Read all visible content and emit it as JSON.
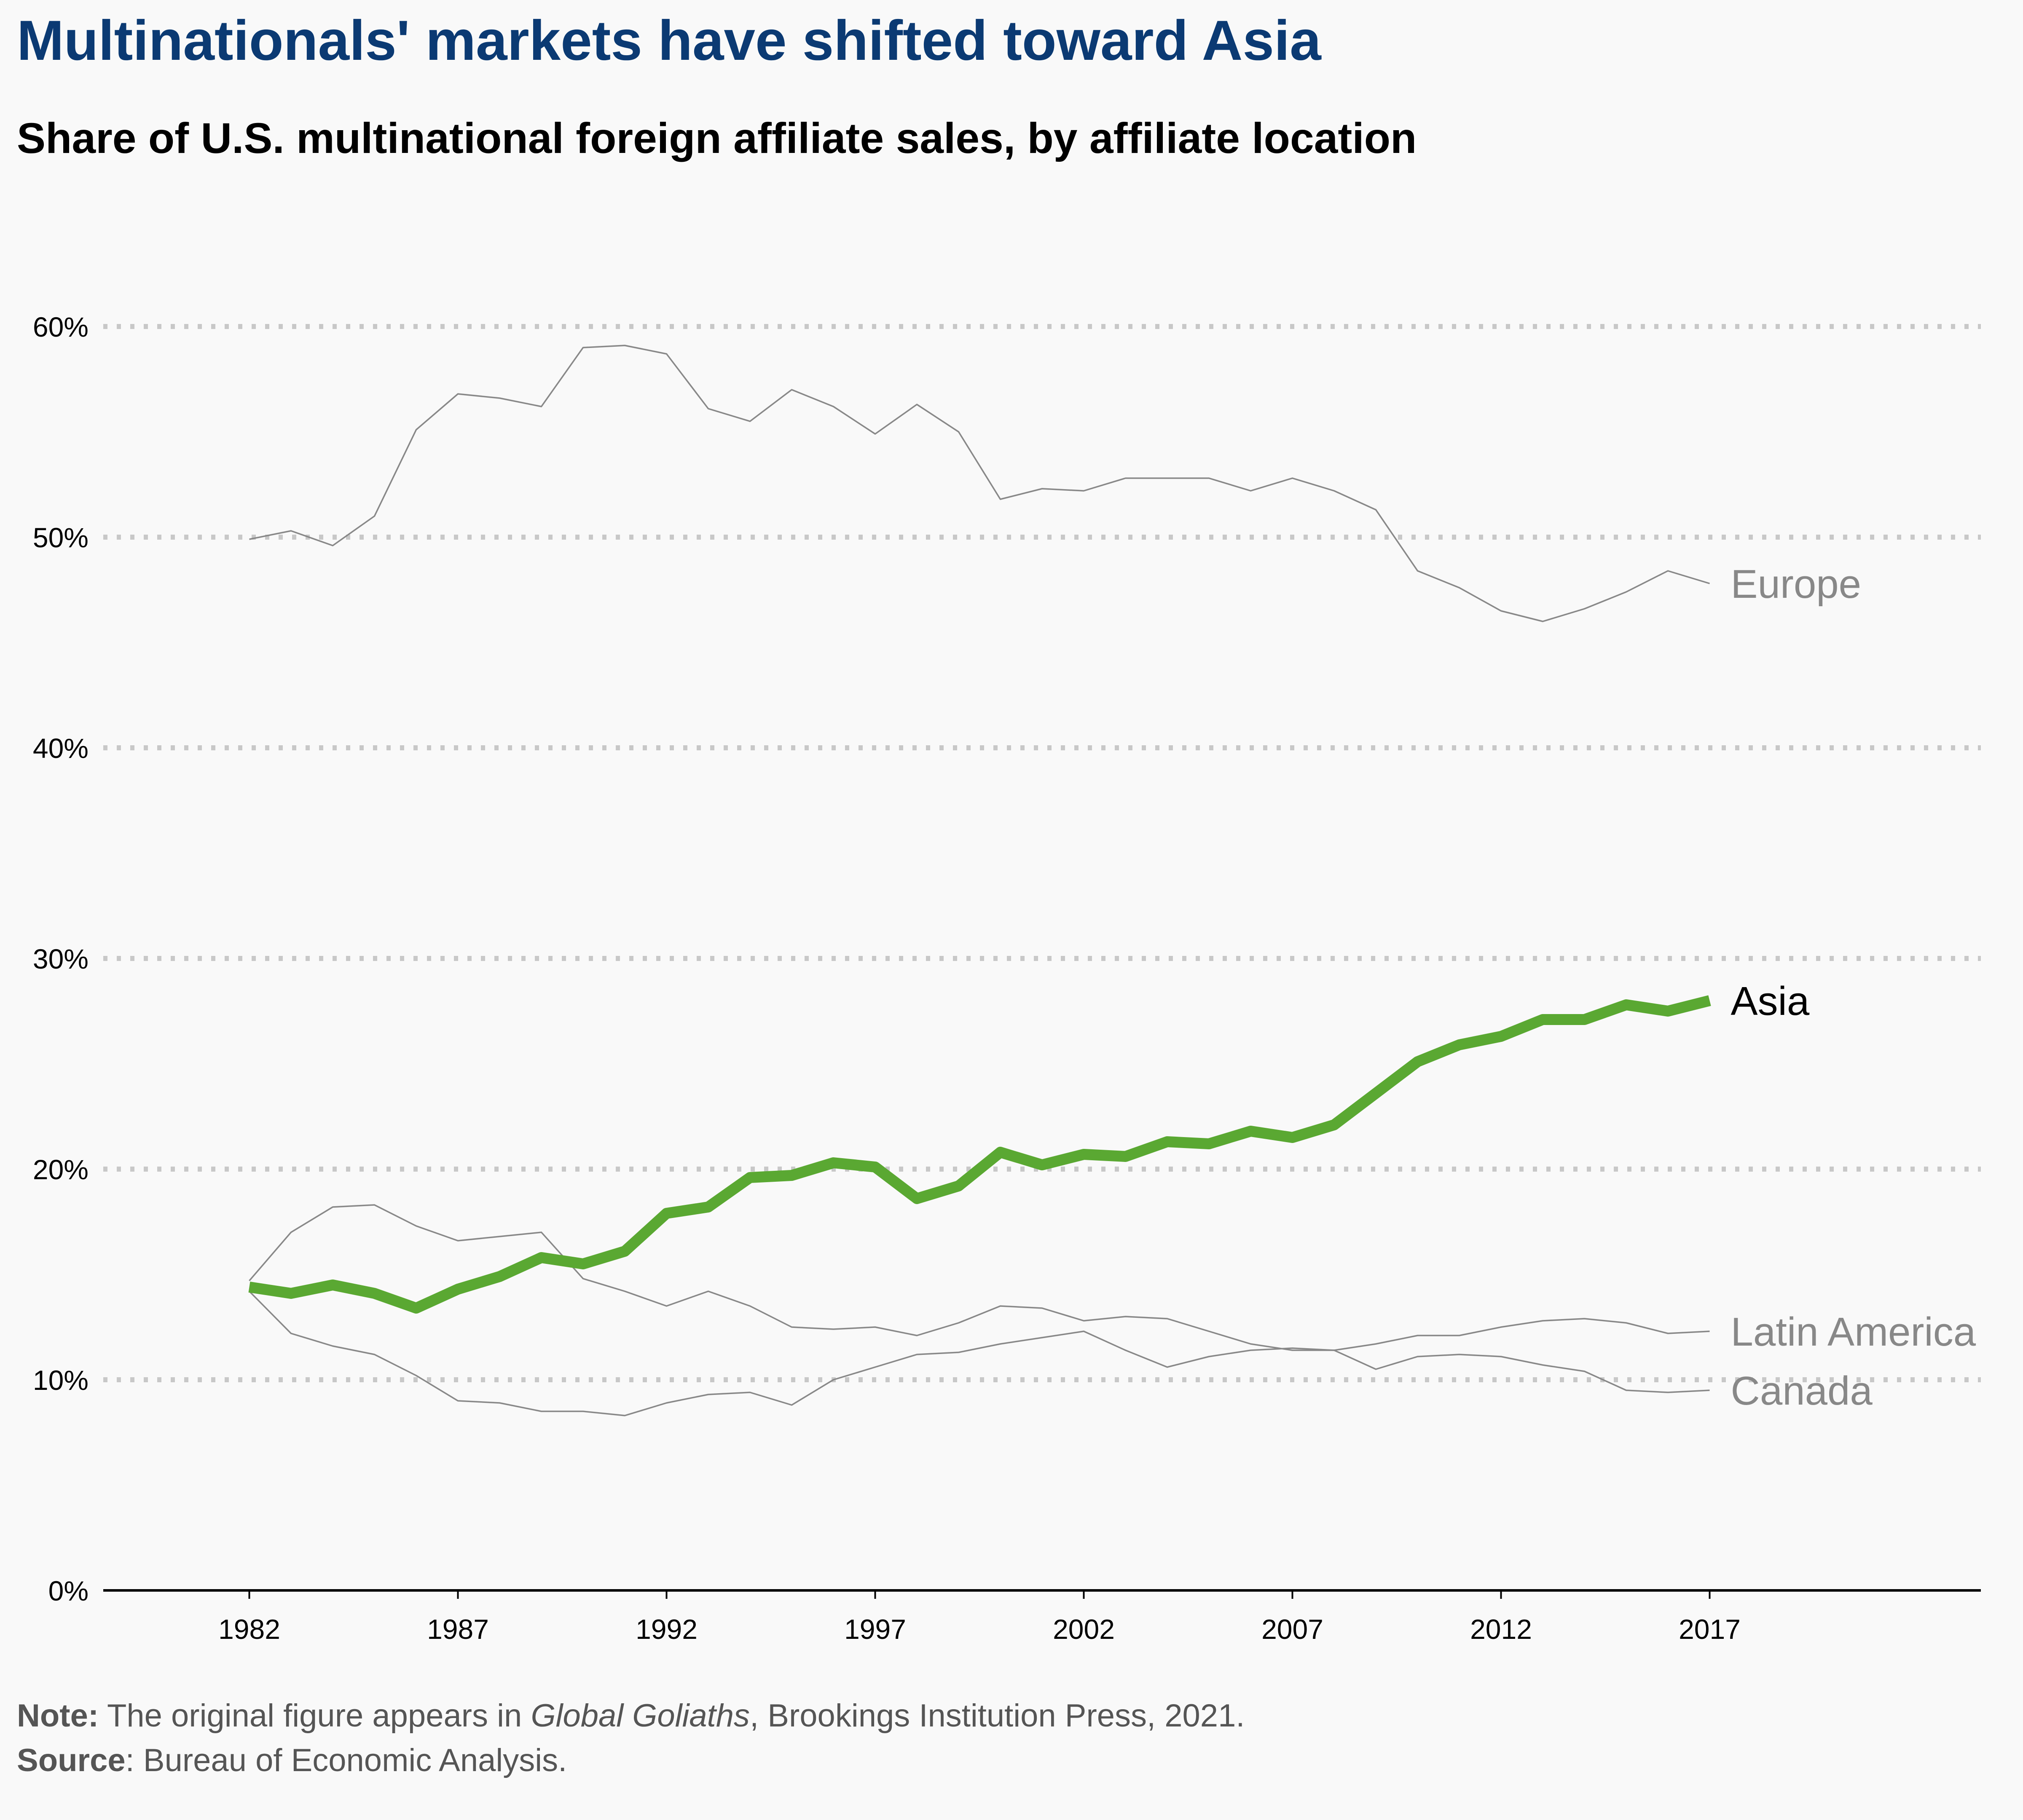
{
  "title": "Multinationals' markets have shifted toward Asia",
  "subtitle": "Share of U.S. multinational foreign affiliate sales, by affiliate location",
  "note": {
    "label": "Note:",
    "before": " The original figure appears in ",
    "book": "Global Goliaths",
    "after": ", Brookings Institution Press, 2021."
  },
  "source": {
    "label": "Source",
    "text": ": Bureau of Economic Analysis."
  },
  "chart_data": {
    "type": "line",
    "title": "Multinationals' markets have shifted toward Asia",
    "subtitle": "Share of U.S. multinational foreign affiliate sales, by affiliate location",
    "x": [
      1982,
      1983,
      1984,
      1985,
      1986,
      1987,
      1988,
      1989,
      1990,
      1991,
      1992,
      1993,
      1994,
      1995,
      1996,
      1997,
      1998,
      1999,
      2000,
      2001,
      2002,
      2003,
      2004,
      2005,
      2006,
      2007,
      2008,
      2009,
      2010,
      2011,
      2012,
      2013,
      2014,
      2015,
      2016,
      2017
    ],
    "x_ticks": [
      1982,
      1987,
      1992,
      1997,
      2002,
      2007,
      2012,
      2017
    ],
    "xlim": [
      1978.5,
      2023.5
    ],
    "ylim": [
      0,
      60
    ],
    "y_ticks": [
      0,
      10,
      20,
      30,
      40,
      50,
      60
    ],
    "y_tick_format": "percent",
    "grid": "horizontal dotted",
    "legend": "direct labels at line ends",
    "series": [
      {
        "name": "Europe",
        "color": "#888888",
        "highlight": false,
        "values": [
          49.9,
          50.3,
          49.6,
          51.0,
          55.1,
          56.8,
          56.6,
          56.2,
          59.0,
          59.1,
          58.7,
          56.1,
          55.5,
          57.0,
          56.2,
          54.9,
          56.3,
          55.0,
          51.8,
          52.3,
          52.2,
          52.8,
          52.8,
          52.8,
          52.2,
          52.8,
          52.2,
          51.3,
          48.4,
          47.6,
          46.5,
          46.0,
          46.6,
          47.4,
          48.4,
          47.8
        ]
      },
      {
        "name": "Asia",
        "color": "#5aa832",
        "highlight": true,
        "values": [
          14.4,
          14.1,
          14.5,
          14.1,
          13.4,
          14.3,
          14.9,
          15.8,
          15.5,
          16.1,
          17.9,
          18.2,
          19.6,
          19.7,
          20.3,
          20.1,
          18.6,
          19.2,
          20.8,
          20.2,
          20.7,
          20.6,
          21.3,
          21.2,
          21.8,
          21.5,
          22.1,
          23.6,
          25.1,
          25.9,
          26.3,
          27.1,
          27.1,
          27.8,
          27.5,
          28.0
        ]
      },
      {
        "name": "Latin America",
        "color": "#888888",
        "highlight": false,
        "values": [
          14.7,
          17.0,
          18.2,
          18.3,
          17.3,
          16.6,
          16.8,
          17.0,
          14.8,
          14.2,
          13.5,
          14.2,
          13.5,
          12.5,
          12.4,
          12.5,
          12.1,
          12.7,
          13.5,
          13.4,
          12.8,
          13.0,
          12.9,
          12.3,
          11.7,
          11.4,
          11.4,
          11.7,
          12.1,
          12.1,
          12.5,
          12.8,
          12.9,
          12.7,
          12.2,
          12.3
        ]
      },
      {
        "name": "Canada",
        "color": "#888888",
        "highlight": false,
        "values": [
          14.2,
          12.2,
          11.6,
          11.2,
          10.2,
          9.0,
          8.9,
          8.5,
          8.5,
          8.3,
          8.9,
          9.3,
          9.4,
          8.8,
          10.0,
          10.6,
          11.2,
          11.3,
          11.7,
          12.0,
          12.3,
          11.4,
          10.6,
          11.1,
          11.4,
          11.5,
          11.4,
          10.5,
          11.1,
          11.2,
          11.1,
          10.7,
          10.4,
          9.5,
          9.4,
          9.5
        ]
      }
    ]
  }
}
